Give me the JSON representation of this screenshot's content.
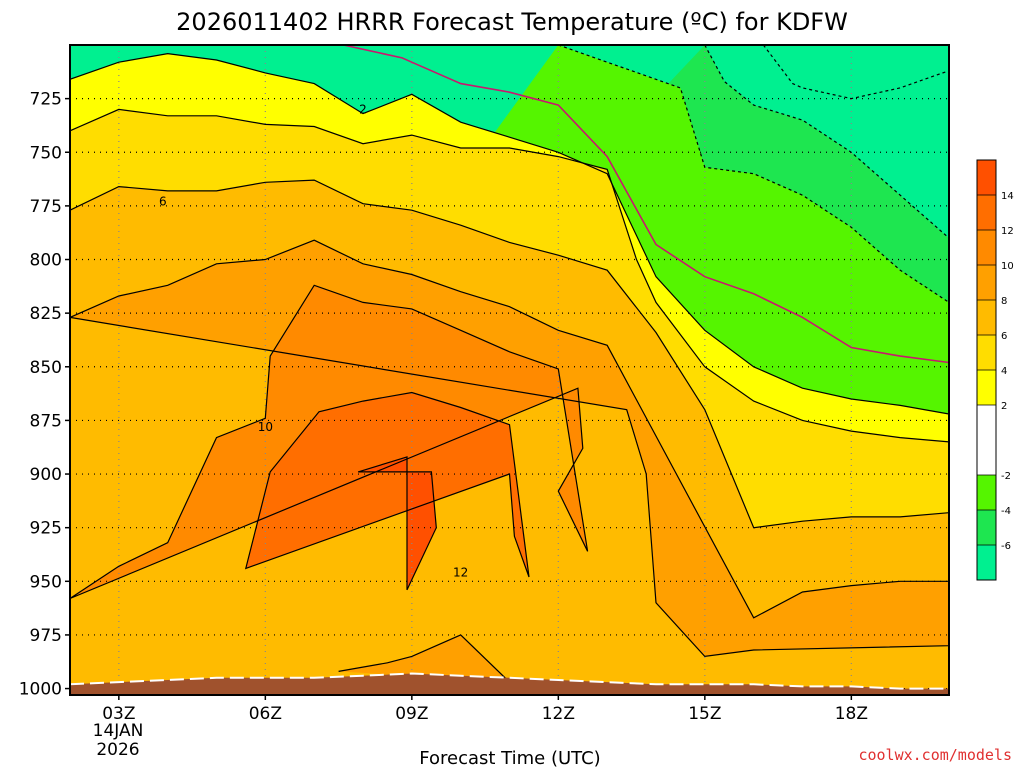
{
  "chart_data": {
    "type": "heatmap",
    "title": "2026011402 HRRR Forecast Temperature (ºC) for KDFW",
    "xlabel": "Forecast Time (UTC)",
    "ylabel": "",
    "x_ticks": [
      {
        "hour": 3,
        "label": "03Z"
      },
      {
        "hour": 6,
        "label": "06Z"
      },
      {
        "hour": 9,
        "label": "09Z"
      },
      {
        "hour": 12,
        "label": "12Z"
      },
      {
        "hour": 15,
        "label": "15Z"
      },
      {
        "hour": 18,
        "label": "18Z"
      }
    ],
    "date_label": [
      "14JAN",
      "2026"
    ],
    "xlim": [
      2,
      20
    ],
    "y_ticks": [
      725,
      750,
      775,
      800,
      825,
      850,
      875,
      900,
      925,
      950,
      975,
      1000
    ],
    "ylim": [
      1003,
      700
    ],
    "y_scale": "linear-pressure-inverted",
    "grid": true,
    "contour_interval": 2,
    "colorbar": {
      "position": "right",
      "bands": [
        {
          "min": -8,
          "max": -6,
          "color": "#00f090"
        },
        {
          "min": -6,
          "max": -4,
          "color": "#1ee650"
        },
        {
          "min": -4,
          "max": -2,
          "color": "#55f500"
        },
        {
          "min": -2,
          "max": 2,
          "color": "#ffffff"
        },
        {
          "min": 2,
          "max": 4,
          "color": "#ffff00"
        },
        {
          "min": 4,
          "max": 6,
          "color": "#ffdd00"
        },
        {
          "min": 6,
          "max": 8,
          "color": "#ffbb00"
        },
        {
          "min": 8,
          "max": 10,
          "color": "#ffa000"
        },
        {
          "min": 10,
          "max": 12,
          "color": "#ff8a00"
        },
        {
          "min": 12,
          "max": 14,
          "color": "#ff6e00"
        },
        {
          "min": 14,
          "max": 16,
          "color": "#ff5000"
        }
      ],
      "tick_labels": [
        "14",
        "12",
        "10",
        "8",
        "6",
        "4",
        "2",
        "-2",
        "-4",
        "-6"
      ],
      "tick_values": [
        14,
        12,
        10,
        8,
        6,
        4,
        2,
        -2,
        -4,
        -6
      ]
    },
    "contour_labels": [
      {
        "label": "2",
        "hour": 8,
        "pressure": 730
      },
      {
        "label": "6",
        "hour": 3.9,
        "pressure": 773
      },
      {
        "label": "10",
        "hour": 6,
        "pressure": 878
      },
      {
        "label": "12",
        "hour": 10,
        "pressure": 946
      }
    ],
    "surface_color": "#a0522d",
    "freezing_line_color": "#c8186e",
    "contour_line_color": "#000000",
    "credit": "coolwx.com/models",
    "bands": [
      {
        "value": 14,
        "color": "#ff5000",
        "upper": [
          [
            7.9,
            899
          ],
          [
            8.9,
            892
          ]
        ],
        "lower": [
          [
            8.9,
            954
          ],
          [
            9.5,
            925
          ],
          [
            9.4,
            899
          ]
        ]
      },
      {
        "value": 12,
        "color": "#ff6e00",
        "upper": [
          [
            5.6,
            944
          ],
          [
            6.1,
            899
          ],
          [
            7.1,
            871
          ],
          [
            8,
            866
          ],
          [
            9,
            862
          ],
          [
            10,
            869
          ],
          [
            11,
            877
          ]
        ],
        "lower": [
          [
            11.4,
            948
          ],
          [
            11.1,
            929
          ],
          [
            11,
            900
          ]
        ]
      },
      {
        "value": 10,
        "color": "#ff8a00",
        "upper": [
          [
            2,
            958
          ],
          [
            3,
            943
          ],
          [
            4,
            932
          ],
          [
            5,
            883
          ],
          [
            6,
            874
          ],
          [
            6.1,
            845
          ],
          [
            7,
            812
          ],
          [
            8,
            820
          ],
          [
            9,
            823
          ],
          [
            10,
            833
          ],
          [
            11,
            843
          ],
          [
            12,
            851
          ]
        ],
        "lower": [
          [
            12.6,
            936
          ],
          [
            12,
            908
          ],
          [
            12.5,
            888
          ],
          [
            12.4,
            860
          ]
        ]
      },
      {
        "value": 8,
        "color": "#ffa000",
        "upper": [
          [
            2,
            827
          ],
          [
            3,
            817
          ],
          [
            4,
            812
          ],
          [
            5,
            802
          ],
          [
            6,
            800
          ],
          [
            7,
            791
          ],
          [
            8,
            802
          ],
          [
            9,
            807
          ],
          [
            10,
            815
          ],
          [
            11,
            822
          ],
          [
            12,
            833
          ],
          [
            13,
            840
          ]
        ],
        "lower": [
          [
            16,
            967
          ],
          [
            17,
            955
          ],
          [
            18,
            952
          ],
          [
            19,
            950
          ],
          [
            20,
            950
          ],
          [
            20,
            980
          ],
          [
            16,
            982
          ],
          [
            15,
            985
          ],
          [
            14,
            960
          ],
          [
            13.8,
            900
          ],
          [
            13.4,
            870
          ]
        ]
      },
      {
        "value": 6,
        "color": "#ffbb00",
        "upper": [
          [
            2,
            777
          ],
          [
            3,
            766
          ],
          [
            4,
            768
          ],
          [
            5,
            768
          ],
          [
            6,
            764
          ],
          [
            7,
            763
          ],
          [
            8,
            774
          ],
          [
            9,
            777
          ],
          [
            10,
            784
          ],
          [
            11,
            792
          ],
          [
            12,
            798
          ],
          [
            13,
            805
          ],
          [
            14,
            834
          ],
          [
            15,
            870
          ],
          [
            16,
            925
          ],
          [
            17,
            922
          ],
          [
            18,
            920
          ],
          [
            19,
            920
          ],
          [
            20,
            918
          ]
        ],
        "lower": []
      },
      {
        "value": 4,
        "color": "#ffdd00",
        "upper": [
          [
            2,
            740
          ],
          [
            3,
            730
          ],
          [
            4,
            733
          ],
          [
            5,
            733
          ],
          [
            6,
            737
          ],
          [
            7,
            738
          ],
          [
            8,
            746
          ],
          [
            9,
            742
          ],
          [
            10,
            748
          ],
          [
            11,
            748
          ],
          [
            12,
            752
          ],
          [
            13,
            758
          ],
          [
            13.6,
            800
          ],
          [
            14,
            820
          ],
          [
            15,
            850
          ],
          [
            16,
            866
          ],
          [
            17,
            875
          ],
          [
            18,
            880
          ],
          [
            19,
            883
          ],
          [
            20,
            885
          ]
        ],
        "lower": []
      },
      {
        "value": 2,
        "color": "#ffff00",
        "upper": [
          [
            2,
            716
          ],
          [
            3,
            708
          ],
          [
            4,
            704
          ],
          [
            5,
            707
          ],
          [
            6,
            713
          ],
          [
            7,
            718
          ],
          [
            8,
            732
          ],
          [
            9,
            723
          ],
          [
            10,
            736
          ],
          [
            11,
            743
          ],
          [
            12,
            750
          ],
          [
            13,
            760
          ],
          [
            14,
            808
          ],
          [
            15,
            833
          ],
          [
            16,
            850
          ],
          [
            17,
            860
          ],
          [
            18,
            865
          ],
          [
            19,
            868
          ],
          [
            20,
            872
          ]
        ],
        "lower": []
      },
      {
        "value": -2,
        "color": "#55f500",
        "upper": [
          [
            12,
            700
          ],
          [
            14.5,
            720
          ],
          [
            15,
            757
          ],
          [
            16,
            760
          ],
          [
            17,
            770
          ],
          [
            18,
            785
          ],
          [
            19,
            805
          ],
          [
            20,
            820
          ]
        ],
        "lower": []
      },
      {
        "value": -4,
        "color": "#1ee650",
        "upper": [
          [
            15,
            700
          ],
          [
            15.4,
            717
          ],
          [
            16,
            728
          ],
          [
            17,
            735
          ],
          [
            18,
            750
          ],
          [
            19,
            770
          ],
          [
            20,
            790
          ]
        ],
        "lower": []
      },
      {
        "value": -6,
        "color": "#00f090",
        "upper": [
          [
            16.2,
            700
          ],
          [
            16.8,
            718
          ],
          [
            17,
            720
          ],
          [
            18,
            725
          ],
          [
            19,
            720
          ],
          [
            20,
            712
          ]
        ],
        "lower": []
      }
    ],
    "freezing_line": [
      [
        7.6,
        700
      ],
      [
        8.8,
        706
      ],
      [
        9,
        708
      ],
      [
        10,
        718
      ],
      [
        11,
        722
      ],
      [
        12,
        728
      ],
      [
        13,
        752
      ],
      [
        14,
        793
      ],
      [
        15,
        808
      ],
      [
        16,
        816
      ],
      [
        17,
        827
      ],
      [
        18,
        841
      ],
      [
        19,
        845
      ],
      [
        20,
        848
      ]
    ],
    "surface_pressure": [
      [
        2,
        998
      ],
      [
        3,
        997
      ],
      [
        4,
        996
      ],
      [
        5,
        995
      ],
      [
        6,
        995
      ],
      [
        7,
        995
      ],
      [
        8,
        994
      ],
      [
        9,
        993
      ],
      [
        10,
        994
      ],
      [
        11,
        995
      ],
      [
        12,
        996
      ],
      [
        13,
        997
      ],
      [
        14,
        998
      ],
      [
        15,
        998
      ],
      [
        16,
        998
      ],
      [
        17,
        999
      ],
      [
        18,
        999
      ],
      [
        19,
        1000
      ],
      [
        20,
        1000
      ]
    ],
    "warm_surface_pocket": {
      "value": 10,
      "color": "#ffa000",
      "upper": [
        [
          7.5,
          992
        ],
        [
          8.5,
          988
        ],
        [
          9,
          985
        ],
        [
          10,
          975
        ],
        [
          11,
          997
        ]
      ]
    }
  }
}
